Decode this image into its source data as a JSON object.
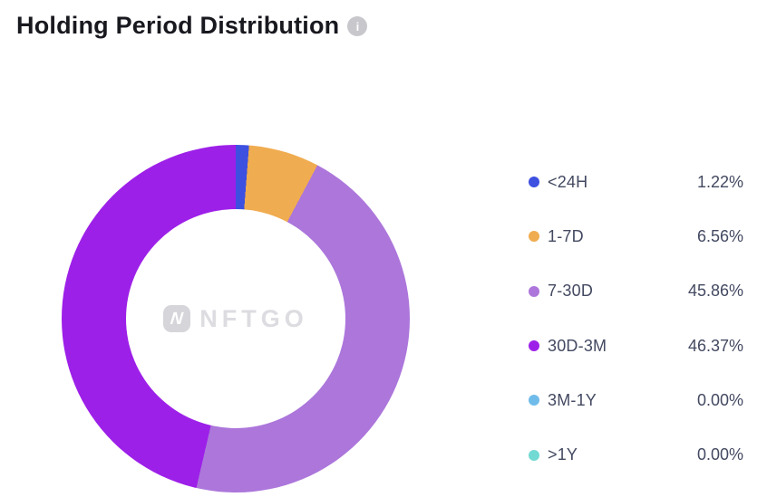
{
  "header": {
    "title": "Holding Period Distribution",
    "info_glyph": "i"
  },
  "watermark": {
    "logo_glyph": "N",
    "text": "NFTGO"
  },
  "chart_data": {
    "type": "pie",
    "donut": true,
    "title": "Holding Period Distribution",
    "categories": [
      "<24H",
      "1-7D",
      "7-30D",
      "30D-3M",
      "3M-1Y",
      ">1Y"
    ],
    "values": [
      1.22,
      6.56,
      45.86,
      46.37,
      0.0,
      0.0
    ],
    "value_labels": [
      "1.22%",
      "6.56%",
      "45.86%",
      "46.37%",
      "0.00%",
      "0.00%"
    ],
    "colors": [
      "#3D50E0",
      "#F0AC50",
      "#AC76DB",
      "#9D20E8",
      "#6FBCEA",
      "#72D9D3"
    ],
    "start_angle": "top-clockwise",
    "legend_position": "right",
    "center_watermark": "NFTGO"
  },
  "legend": {
    "items": [
      {
        "label": "<24H",
        "value": "1.22%",
        "color": "#3D50E0"
      },
      {
        "label": "1-7D",
        "value": "6.56%",
        "color": "#F0AC50"
      },
      {
        "label": "7-30D",
        "value": "45.86%",
        "color": "#AC76DB"
      },
      {
        "label": "30D-3M",
        "value": "46.37%",
        "color": "#9D20E8"
      },
      {
        "label": "3M-1Y",
        "value": "0.00%",
        "color": "#6FBCEA"
      },
      {
        "label": ">1Y",
        "value": "0.00%",
        "color": "#72D9D3"
      }
    ]
  }
}
